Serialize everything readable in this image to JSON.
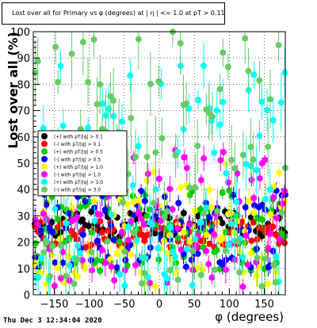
{
  "title": "Lost over all for Primary vs φ (degrees) at | η | <= 1.0 at pT > 0.11",
  "timestamp": "Thu Dec  3 12:34:04 2020",
  "chart_data": {
    "type": "scatter",
    "xlabel": "φ (degrees)",
    "ylabel": "Lost over all (%)",
    "xlim": [
      -180,
      180
    ],
    "ylim": [
      0,
      100
    ],
    "xticks": [
      -150,
      -100,
      -50,
      0,
      50,
      100,
      150
    ],
    "yticks": [
      0,
      10,
      20,
      30,
      40,
      50,
      60,
      70,
      80,
      90,
      100
    ],
    "xtick_labels": [
      "−150",
      "−100",
      "−50",
      "0",
      "50",
      "100",
      "150"
    ],
    "ytick_labels": [
      "0",
      "10",
      "20",
      "30",
      "40",
      "50",
      "60",
      "70",
      "80",
      "90",
      "100"
    ],
    "grid": true,
    "legend_position": "left, middle",
    "series": [
      {
        "name": "(+) with pT/|q| > 0.1",
        "color": "#000000",
        "band": [
          22,
          32
        ],
        "err": 2
      },
      {
        "name": "(-) with pT/|q| > 0.1",
        "color": "#ff0000",
        "band": [
          18,
          28
        ],
        "err": 2
      },
      {
        "name": "(+) with pT/|q| > 0.5",
        "color": "#00cc00",
        "band": [
          9,
          40
        ],
        "err": 3
      },
      {
        "name": "(-) with pT/|q| > 0.5",
        "color": "#0000ff",
        "band": [
          10,
          40
        ],
        "err": 3
      },
      {
        "name": "(+) with pT/|q| > 1.0",
        "color": "#ffff00",
        "band": [
          3,
          50
        ],
        "err": 4
      },
      {
        "name": "(-) with pT/|q| > 1.0",
        "color": "#ff00ff",
        "band": [
          3,
          55
        ],
        "err": 4
      },
      {
        "name": "(+) with pT/|q| > 3.0",
        "color": "#00ffff",
        "band": [
          3,
          88
        ],
        "err": 8
      },
      {
        "name": "(-) with pT/|q| > 3.0",
        "color": "#66cc66",
        "band": [
          3,
          100
        ],
        "err": 10
      }
    ]
  }
}
